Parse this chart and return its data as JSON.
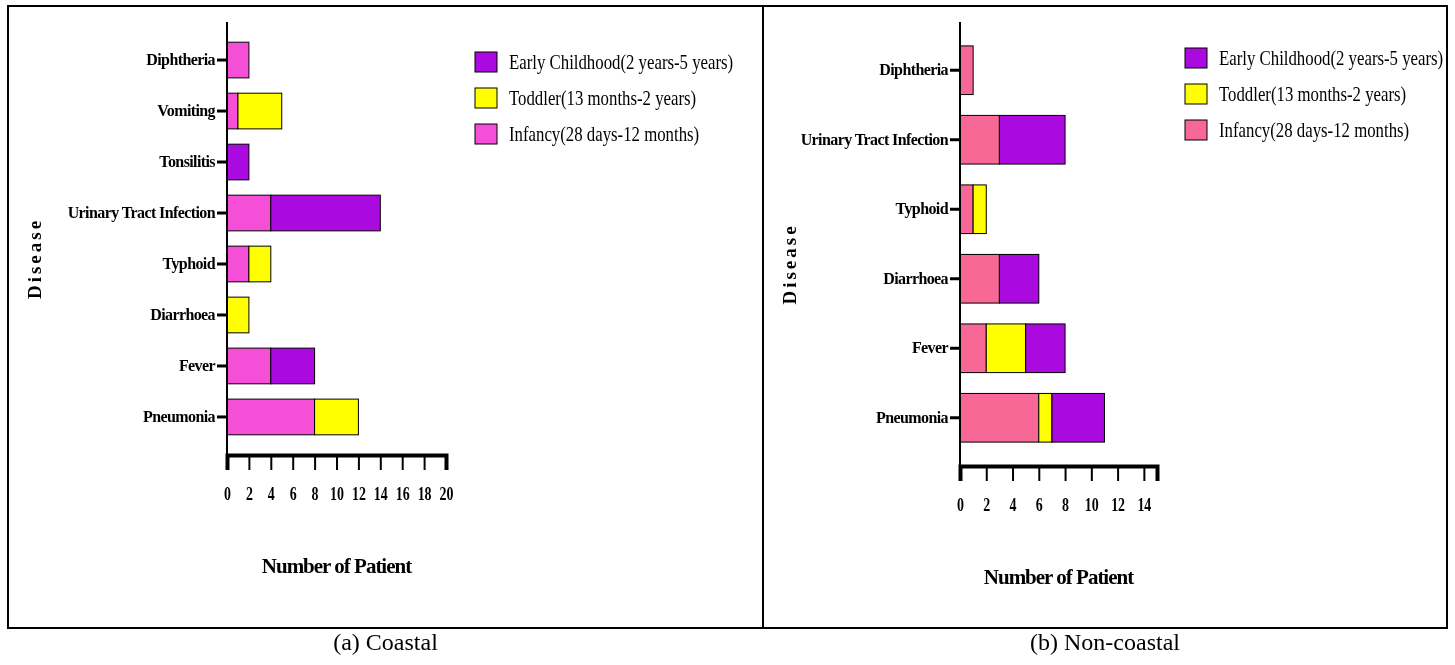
{
  "chart_data": [
    {
      "type": "bar",
      "orientation": "horizontal",
      "stacked": true,
      "title": "(a) Coastal",
      "xlabel": "Number of Patient",
      "ylabel": "Disease",
      "legend": "top right",
      "categories": [
        "Diphtheria",
        "Vomiting",
        "Tonsilitis",
        "Urinary Tract Infection",
        "Typhoid",
        "Diarrhoea",
        "Fever",
        "Pneumonia"
      ],
      "xlim": [
        0,
        20
      ],
      "xticks": [
        0,
        2,
        4,
        6,
        8,
        10,
        12,
        14,
        16,
        18,
        20
      ],
      "series": [
        {
          "name": "Infancy(28 days-12 months)",
          "color": "#f44fd6",
          "values": [
            2,
            1,
            0,
            4,
            2,
            0,
            4,
            8
          ]
        },
        {
          "name": "Toddler(13 months-2 years)",
          "color": "#ffff00",
          "values": [
            0,
            4,
            0,
            0,
            2,
            2,
            0,
            4
          ]
        },
        {
          "name": "Early Childhood(2 years-5 years)",
          "color": "#aa0ae0",
          "values": [
            0,
            0,
            2,
            10,
            0,
            0,
            4,
            0
          ]
        }
      ]
    },
    {
      "type": "bar",
      "orientation": "horizontal",
      "stacked": true,
      "title": "(b) Non-coastal",
      "xlabel": "Number of Patient",
      "ylabel": "Disease",
      "legend": "top right",
      "categories": [
        "Diphtheria",
        "Urinary Tract Infection",
        "Typhoid",
        "Diarrhoea",
        "Fever",
        "Pneumonia"
      ],
      "xlim": [
        0,
        15
      ],
      "xticks": [
        0,
        2,
        4,
        6,
        8,
        10,
        12,
        14
      ],
      "series": [
        {
          "name": "Infancy(28 days-12 months)",
          "color": "#f76896",
          "values": [
            1,
            3,
            1,
            3,
            2,
            6
          ]
        },
        {
          "name": "Toddler(13 months-2 years)",
          "color": "#ffff00",
          "values": [
            0,
            0,
            1,
            0,
            3,
            1
          ]
        },
        {
          "name": "Early Childhood(2 years-5 years)",
          "color": "#aa0ae0",
          "values": [
            0,
            5,
            0,
            3,
            3,
            4
          ]
        }
      ]
    }
  ]
}
